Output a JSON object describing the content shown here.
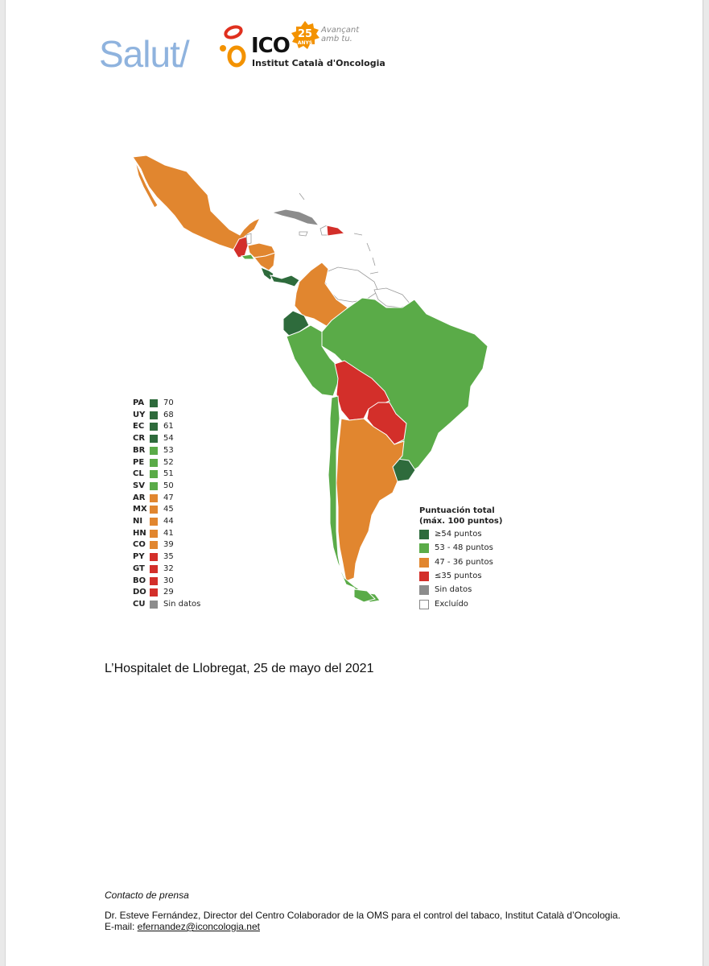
{
  "header": {
    "salut_logo": "Salut/",
    "ico_logo": "ICO",
    "institute": "Institut Català d'Oncologia",
    "anniversary_number": "25",
    "anniversary_word": "ANYS",
    "tagline_line1": "Avançant",
    "tagline_line2": "amb tu."
  },
  "country_scores": [
    {
      "code": "PA",
      "value": "70",
      "color": "#2e6b3c"
    },
    {
      "code": "UY",
      "value": "68",
      "color": "#2e6b3c"
    },
    {
      "code": "EC",
      "value": "61",
      "color": "#2e6b3c"
    },
    {
      "code": "CR",
      "value": "54",
      "color": "#2e6b3c"
    },
    {
      "code": "BR",
      "value": "53",
      "color": "#5aab48"
    },
    {
      "code": "PE",
      "value": "52",
      "color": "#5aab48"
    },
    {
      "code": "CL",
      "value": "51",
      "color": "#5aab48"
    },
    {
      "code": "SV",
      "value": "50",
      "color": "#5aab48"
    },
    {
      "code": "AR",
      "value": "47",
      "color": "#e1862f"
    },
    {
      "code": "MX",
      "value": "45",
      "color": "#e1862f"
    },
    {
      "code": "NI",
      "value": "44",
      "color": "#e1862f"
    },
    {
      "code": "HN",
      "value": "41",
      "color": "#e1862f"
    },
    {
      "code": "CO",
      "value": "39",
      "color": "#e1862f"
    },
    {
      "code": "PY",
      "value": "35",
      "color": "#d32f2a"
    },
    {
      "code": "GT",
      "value": "32",
      "color": "#d32f2a"
    },
    {
      "code": "BO",
      "value": "30",
      "color": "#d32f2a"
    },
    {
      "code": "DO",
      "value": "29",
      "color": "#d32f2a"
    },
    {
      "code": "CU",
      "value": "Sin datos",
      "color": "#8c8c8c"
    }
  ],
  "scale_legend": {
    "title_line1": "Puntuación total",
    "title_line2": "(máx. 100 puntos)",
    "items": [
      {
        "label": "≥54 puntos",
        "color": "#2e6b3c"
      },
      {
        "label": "53 - 48 puntos",
        "color": "#5aab48"
      },
      {
        "label": "47 - 36 puntos",
        "color": "#e1862f"
      },
      {
        "label": "≤35 puntos",
        "color": "#d32f2a"
      },
      {
        "label": "Sin datos",
        "color": "#8c8c8c"
      },
      {
        "label": "Excluído",
        "color": "#ffffff"
      }
    ]
  },
  "dateline": "L’Hospitalet de Llobregat, 25 de mayo del 2021",
  "press": {
    "title": "Contacto de prensa",
    "text": "Dr. Esteve Fernández, Director del Centro Colaborador de la OMS para el control del tabaco, Institut Català d’Oncologia. E-mail: ",
    "email": "efernandez@iconcologia.net"
  }
}
